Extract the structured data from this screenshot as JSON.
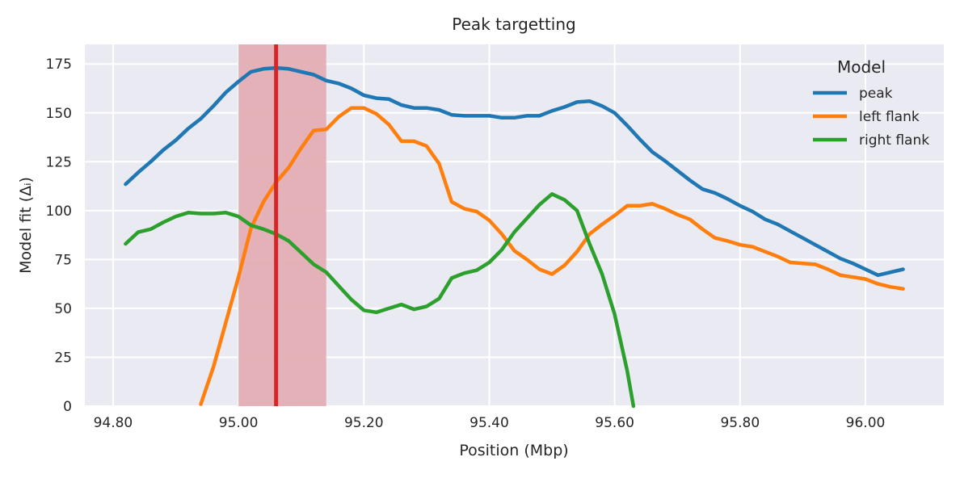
{
  "chart_data": {
    "type": "line",
    "title": "Peak targetting",
    "xlabel": "Position (Mbp)",
    "ylabel": "Model fit (Δᵢ)",
    "xlim": [
      94.755,
      96.125
    ],
    "ylim": [
      0,
      185
    ],
    "x_ticks": [
      94.8,
      95.0,
      95.2,
      95.4,
      95.6,
      95.8,
      96.0
    ],
    "x_tick_labels": [
      "94.80",
      "95.00",
      "95.20",
      "95.40",
      "95.60",
      "95.80",
      "96.00"
    ],
    "y_ticks": [
      0,
      25,
      50,
      75,
      100,
      125,
      150,
      175
    ],
    "y_tick_labels": [
      "0",
      "25",
      "50",
      "75",
      "100",
      "125",
      "150",
      "175"
    ],
    "grid": true,
    "legend": {
      "title": "Model",
      "placement": "top-right"
    },
    "highlight_band": {
      "x_start": 95.0,
      "x_end": 95.14,
      "color": "#e3aeb3"
    },
    "marker_line": {
      "x": 95.06,
      "color": "#d62728"
    },
    "series": [
      {
        "name": "peak",
        "color": "#1f77b4",
        "points": [
          [
            94.82,
            113.5
          ],
          [
            94.84,
            119.5
          ],
          [
            94.86,
            125
          ],
          [
            94.88,
            131
          ],
          [
            94.9,
            136
          ],
          [
            94.92,
            142
          ],
          [
            94.94,
            147
          ],
          [
            94.96,
            153.5
          ],
          [
            94.98,
            160.5
          ],
          [
            95.0,
            166
          ],
          [
            95.02,
            171
          ],
          [
            95.04,
            172.5
          ],
          [
            95.06,
            173
          ],
          [
            95.08,
            172.5
          ],
          [
            95.1,
            171
          ],
          [
            95.12,
            169.5
          ],
          [
            95.14,
            166.5
          ],
          [
            95.16,
            165
          ],
          [
            95.18,
            162.5
          ],
          [
            95.2,
            159
          ],
          [
            95.22,
            157.5
          ],
          [
            95.24,
            157
          ],
          [
            95.26,
            154
          ],
          [
            95.28,
            152.5
          ],
          [
            95.3,
            152.5
          ],
          [
            95.32,
            151.5
          ],
          [
            95.34,
            149
          ],
          [
            95.36,
            148.5
          ],
          [
            95.38,
            148.5
          ],
          [
            95.4,
            148.5
          ],
          [
            95.42,
            147.5
          ],
          [
            95.44,
            147.5
          ],
          [
            95.46,
            148.5
          ],
          [
            95.48,
            148.5
          ],
          [
            95.5,
            151
          ],
          [
            95.52,
            153
          ],
          [
            95.54,
            155.5
          ],
          [
            95.56,
            156
          ],
          [
            95.58,
            153.5
          ],
          [
            95.6,
            150
          ],
          [
            95.62,
            143.5
          ],
          [
            95.64,
            136.5
          ],
          [
            95.66,
            130
          ],
          [
            95.68,
            125.5
          ],
          [
            95.7,
            120.5
          ],
          [
            95.72,
            115.5
          ],
          [
            95.74,
            111
          ],
          [
            95.76,
            109
          ],
          [
            95.78,
            106
          ],
          [
            95.8,
            102.5
          ],
          [
            95.82,
            99.5
          ],
          [
            95.84,
            95.5
          ],
          [
            95.86,
            93
          ],
          [
            95.88,
            89.5
          ],
          [
            95.9,
            86
          ],
          [
            95.92,
            82.5
          ],
          [
            95.94,
            79
          ],
          [
            95.96,
            75.5
          ],
          [
            95.98,
            73
          ],
          [
            96.0,
            70
          ],
          [
            96.02,
            67
          ],
          [
            96.06,
            70
          ]
        ]
      },
      {
        "name": "left flank",
        "color": "#ff7f0e",
        "points": [
          [
            94.94,
            1
          ],
          [
            94.96,
            20
          ],
          [
            94.98,
            43
          ],
          [
            95.0,
            66
          ],
          [
            95.02,
            91
          ],
          [
            95.04,
            104.5
          ],
          [
            95.06,
            114.5
          ],
          [
            95.08,
            122
          ],
          [
            95.1,
            132
          ],
          [
            95.12,
            141
          ],
          [
            95.14,
            141.5
          ],
          [
            95.16,
            148
          ],
          [
            95.18,
            152.5
          ],
          [
            95.2,
            152.5
          ],
          [
            95.22,
            149.5
          ],
          [
            95.24,
            144
          ],
          [
            95.26,
            135.5
          ],
          [
            95.28,
            135.5
          ],
          [
            95.3,
            133
          ],
          [
            95.32,
            124
          ],
          [
            95.34,
            104.5
          ],
          [
            95.36,
            101
          ],
          [
            95.38,
            99.5
          ],
          [
            95.4,
            95
          ],
          [
            95.42,
            88
          ],
          [
            95.44,
            79.5
          ],
          [
            95.46,
            75
          ],
          [
            95.48,
            70
          ],
          [
            95.5,
            67.5
          ],
          [
            95.52,
            72
          ],
          [
            95.54,
            79
          ],
          [
            95.56,
            88
          ],
          [
            95.58,
            93
          ],
          [
            95.6,
            97.5
          ],
          [
            95.62,
            102.5
          ],
          [
            95.64,
            102.5
          ],
          [
            95.66,
            103.5
          ],
          [
            95.68,
            101
          ],
          [
            95.7,
            98
          ],
          [
            95.72,
            95.5
          ],
          [
            95.74,
            90.5
          ],
          [
            95.76,
            86
          ],
          [
            95.78,
            84.5
          ],
          [
            95.8,
            82.5
          ],
          [
            95.82,
            81.5
          ],
          [
            95.84,
            79
          ],
          [
            95.86,
            76.5
          ],
          [
            95.88,
            73.5
          ],
          [
            95.9,
            73
          ],
          [
            95.92,
            72.5
          ],
          [
            95.94,
            70
          ],
          [
            95.96,
            67
          ],
          [
            95.98,
            66
          ],
          [
            96.0,
            65
          ],
          [
            96.02,
            62.5
          ],
          [
            96.04,
            61
          ],
          [
            96.06,
            60
          ]
        ]
      },
      {
        "name": "right flank",
        "color": "#2ca02c",
        "points": [
          [
            94.82,
            83
          ],
          [
            94.84,
            89
          ],
          [
            94.86,
            90.5
          ],
          [
            94.88,
            94
          ],
          [
            94.9,
            97
          ],
          [
            94.92,
            99
          ],
          [
            94.94,
            98.5
          ],
          [
            94.96,
            98.5
          ],
          [
            94.98,
            99
          ],
          [
            95.0,
            97
          ],
          [
            95.02,
            92.5
          ],
          [
            95.04,
            90.5
          ],
          [
            95.06,
            88
          ],
          [
            95.08,
            84.5
          ],
          [
            95.1,
            78.5
          ],
          [
            95.12,
            72.5
          ],
          [
            95.14,
            68.5
          ],
          [
            95.16,
            61.5
          ],
          [
            95.18,
            54.5
          ],
          [
            95.2,
            49
          ],
          [
            95.22,
            48
          ],
          [
            95.24,
            50
          ],
          [
            95.26,
            52
          ],
          [
            95.28,
            49.5
          ],
          [
            95.3,
            51
          ],
          [
            95.32,
            55
          ],
          [
            95.34,
            65.5
          ],
          [
            95.36,
            68
          ],
          [
            95.38,
            69.5
          ],
          [
            95.4,
            73.5
          ],
          [
            95.42,
            80
          ],
          [
            95.44,
            89
          ],
          [
            95.46,
            96
          ],
          [
            95.48,
            103
          ],
          [
            95.5,
            108.5
          ],
          [
            95.52,
            105.5
          ],
          [
            95.54,
            100
          ],
          [
            95.56,
            83
          ],
          [
            95.58,
            67.5
          ],
          [
            95.6,
            47
          ],
          [
            95.62,
            18
          ],
          [
            95.63,
            0
          ]
        ]
      }
    ]
  }
}
